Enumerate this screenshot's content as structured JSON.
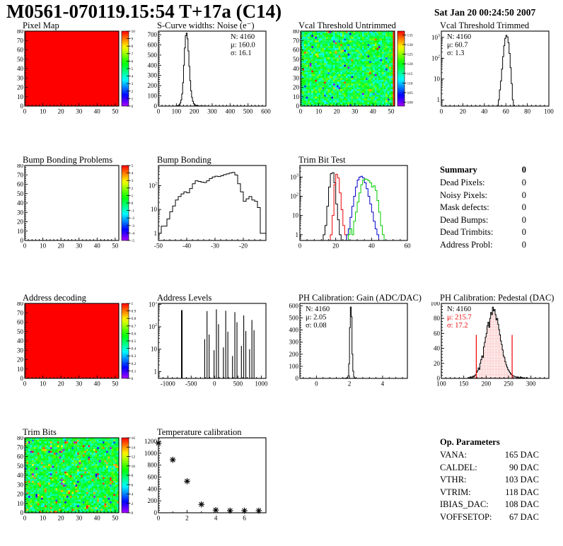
{
  "header": {
    "title": "M0561-070119.15:54 T+17a (C14)",
    "date": "Sat Jan 20 00:24:50 2007"
  },
  "summary": {
    "heading": "Summary",
    "value": "0",
    "rows": [
      {
        "label": "Dead Pixels:",
        "value": "0"
      },
      {
        "label": "Noisy Pixels:",
        "value": "0"
      },
      {
        "label": "Mask defects:",
        "value": "0"
      },
      {
        "label": "Dead Bumps:",
        "value": "0"
      },
      {
        "label": "Dead Trimbits:",
        "value": "0"
      },
      {
        "label": "Address Probl:",
        "value": "0"
      }
    ]
  },
  "op_parameters": {
    "heading": "Op. Parameters",
    "rows": [
      {
        "label": "VANA:",
        "value": "165 DAC"
      },
      {
        "label": "CALDEL:",
        "value": "90 DAC"
      },
      {
        "label": "VTHR:",
        "value": "103 DAC"
      },
      {
        "label": "VTRIM:",
        "value": "118 DAC"
      },
      {
        "label": "IBIAS_DAC:",
        "value": "108 DAC"
      },
      {
        "label": "VOFFSETOP:",
        "value": "67 DAC"
      }
    ]
  },
  "colors": {
    "stats_highlight": "#ee0000",
    "heat_uniform_max": "#ff0000",
    "trimbit_series": [
      "#000000",
      "#ee0000",
      "#0000cc",
      "#00cc00"
    ]
  },
  "chart_data": [
    {
      "id": "pixel_map",
      "title": "Pixel Map",
      "type": "heatmap",
      "x_range": [
        0,
        52
      ],
      "y_range": [
        0,
        80
      ],
      "xticks": [
        0,
        10,
        20,
        30,
        40,
        50
      ],
      "yticks": [
        0,
        10,
        20,
        30,
        40,
        50,
        60,
        70,
        80
      ],
      "fill": {
        "mode": "uniform",
        "value": 10
      },
      "colorbar": {
        "min": 0,
        "max": 10,
        "ticks": [
          0,
          1,
          2,
          3,
          4,
          5,
          6,
          7,
          8,
          9,
          10
        ]
      }
    },
    {
      "id": "scurve",
      "title": "S-Curve widths: Noise (e⁻)",
      "type": "histogram",
      "yscale": "linear",
      "x_range": [
        0,
        600
      ],
      "y_range": [
        0,
        735
      ],
      "xticks": [
        0,
        100,
        200,
        300,
        400,
        500,
        600
      ],
      "yticks": [
        0,
        100,
        200,
        300,
        400,
        500,
        600,
        700
      ],
      "stats": {
        "pos": "tr",
        "lines": [
          {
            "text": "N: 4160"
          },
          {
            "text": "μ: 160.0"
          },
          {
            "text": "σ: 16.1"
          }
        ]
      },
      "series": [
        {
          "color": "#000000",
          "x0": 95,
          "dx": 5,
          "counts": [
            1,
            2,
            4,
            8,
            15,
            30,
            60,
            120,
            230,
            400,
            570,
            690,
            715,
            660,
            540,
            390,
            250,
            150,
            85,
            48,
            26,
            15,
            9,
            6,
            4,
            3,
            2,
            2,
            1,
            1,
            2,
            1,
            1,
            0,
            1
          ]
        }
      ]
    },
    {
      "id": "vcal_untrimmed",
      "title": "Vcal Threshold Untrimmed",
      "type": "heatmap",
      "x_range": [
        0,
        52
      ],
      "y_range": [
        0,
        80
      ],
      "xticks": [
        0,
        10,
        20,
        30,
        40,
        50
      ],
      "yticks": [
        0,
        10,
        20,
        30,
        40,
        50,
        60,
        70,
        80
      ],
      "fill": {
        "mode": "noise",
        "mean": 118,
        "sigma": 4.5,
        "hi_frac": 0.012,
        "lo_frac": 0.015,
        "hot_last_col": true
      },
      "colorbar": {
        "min": 98,
        "max": 137,
        "ticks": [
          100,
          105,
          110,
          115,
          120,
          125,
          130,
          135
        ]
      }
    },
    {
      "id": "vcal_trimmed",
      "title": "Vcal Threshold Trimmed",
      "type": "histogram",
      "yscale": "log",
      "x_range": [
        0,
        100
      ],
      "y_range": [
        0.5,
        2000
      ],
      "xticks": [
        0,
        20,
        40,
        60,
        80,
        100
      ],
      "stats": {
        "pos": "tl",
        "lines": [
          {
            "text": "N: 4160"
          },
          {
            "text": "μ: 60.7"
          },
          {
            "text": "σ: 1.3"
          }
        ]
      },
      "series": [
        {
          "color": "#000000",
          "x0": 53,
          "dx": 1,
          "counts": [
            1,
            3,
            8,
            30,
            120,
            400,
            900,
            1250,
            1050,
            550,
            170,
            35,
            6,
            1
          ]
        }
      ]
    },
    {
      "id": "bump_problems",
      "title": "Bump Bonding Problems",
      "type": "heatmap",
      "x_range": [
        0,
        52
      ],
      "y_range": [
        0,
        80
      ],
      "xticks": [
        0,
        10,
        20,
        30,
        40,
        50
      ],
      "yticks": [
        0,
        10,
        20,
        30,
        40,
        50,
        60,
        70,
        80
      ],
      "fill": {
        "mode": "empty"
      },
      "colorbar": {
        "min": -5,
        "max": 5,
        "ticks": [
          -5,
          -4,
          -3,
          -2,
          -1,
          0,
          1,
          2,
          3,
          4,
          5
        ]
      }
    },
    {
      "id": "bump_bonding",
      "title": "Bump Bonding",
      "type": "histogram",
      "yscale": "log",
      "x_range": [
        -50,
        -12
      ],
      "y_range": [
        0.5,
        700
      ],
      "xticks": [
        -50,
        -40,
        -30,
        -20
      ],
      "series": [
        {
          "color": "#000000",
          "x0": -50,
          "dx": 1,
          "counts": [
            1,
            2,
            2,
            4,
            8,
            14,
            25,
            35,
            45,
            55,
            50,
            75,
            120,
            160,
            150,
            140,
            135,
            160,
            200,
            230,
            250,
            240,
            260,
            290,
            310,
            340,
            360,
            280,
            120,
            55,
            22,
            28,
            35,
            25,
            22,
            12,
            1,
            1
          ]
        }
      ]
    },
    {
      "id": "trimbit_test",
      "title": "Trim Bit Test",
      "type": "histogram",
      "yscale": "log",
      "x_range": [
        0,
        60
      ],
      "y_range": [
        0.5,
        4000
      ],
      "xticks": [
        0,
        20,
        40,
        60
      ],
      "series": [
        {
          "color": "#000000",
          "x0": 13,
          "dx": 1,
          "counts": [
            1,
            3,
            30,
            300,
            1500,
            1700,
            500,
            40,
            6,
            1
          ]
        },
        {
          "color": "#ee0000",
          "x0": 17,
          "dx": 1,
          "counts": [
            1,
            10,
            400,
            1400,
            900,
            150,
            20,
            3,
            1
          ]
        },
        {
          "color": "#0000cc",
          "x0": 26,
          "dx": 1,
          "counts": [
            1,
            2,
            8,
            30,
            100,
            300,
            700,
            1000,
            1100,
            900,
            500,
            250,
            100,
            40,
            15,
            5,
            2,
            1
          ]
        },
        {
          "color": "#00cc00",
          "x0": 27,
          "dx": 1,
          "counts": [
            1,
            2,
            1,
            5,
            15,
            50,
            150,
            400,
            700,
            800,
            750,
            650,
            500,
            300,
            350,
            200,
            60,
            15,
            3,
            1
          ]
        }
      ]
    },
    {
      "id": "addr_decoding",
      "title": "Address decoding",
      "type": "heatmap",
      "x_range": [
        0,
        52
      ],
      "y_range": [
        0,
        80
      ],
      "xticks": [
        0,
        10,
        20,
        30,
        40,
        50
      ],
      "yticks": [
        0,
        10,
        20,
        30,
        40,
        50,
        60,
        70,
        80
      ],
      "fill": {
        "mode": "uniform",
        "value": 1
      },
      "colorbar": {
        "min": 0,
        "max": 1,
        "ticks": [
          0,
          0.1,
          0.2,
          0.3,
          0.4,
          0.5,
          0.6,
          0.7,
          0.8,
          0.9,
          1
        ]
      }
    },
    {
      "id": "addr_levels",
      "title": "Address Levels",
      "type": "spikes",
      "yscale": "log",
      "x_range": [
        -1200,
        1100
      ],
      "y_range": [
        0.5,
        1100
      ],
      "xticks": [
        -1000,
        -500,
        0,
        500,
        1000
      ],
      "spikes": [
        [
          -700,
          550,
          30
        ],
        [
          -210,
          28,
          12
        ],
        [
          -160,
          500,
          14
        ],
        [
          -115,
          45,
          12
        ],
        [
          -10,
          9,
          12
        ],
        [
          40,
          600,
          14
        ],
        [
          85,
          130,
          12
        ],
        [
          190,
          12,
          12
        ],
        [
          240,
          520,
          14
        ],
        [
          285,
          60,
          12
        ],
        [
          385,
          5,
          12
        ],
        [
          435,
          450,
          14
        ],
        [
          480,
          160,
          12
        ],
        [
          575,
          14,
          12
        ],
        [
          625,
          320,
          14
        ],
        [
          670,
          65,
          12
        ],
        [
          750,
          10,
          12
        ],
        [
          800,
          200,
          14
        ],
        [
          845,
          70,
          12
        ]
      ]
    },
    {
      "id": "ph_gain",
      "title": "PH Calibration: Gain (ADC/DAC)",
      "type": "histogram",
      "yscale": "linear",
      "x_range": [
        -1,
        5.5
      ],
      "y_range": [
        0,
        620
      ],
      "xticks": [
        0,
        2,
        4
      ],
      "yticks": [
        0,
        100,
        200,
        300,
        400,
        500,
        600
      ],
      "stats": {
        "pos": "tl",
        "lines": [
          {
            "text": "N: 4160"
          },
          {
            "text": "μ: 2.05"
          },
          {
            "text": "σ: 0.08"
          }
        ]
      },
      "series": [
        {
          "color": "#000000",
          "x0": 1.55,
          "dx": 0.05,
          "counts": [
            1,
            0,
            1,
            0,
            2,
            3,
            8,
            20,
            120,
            420,
            590,
            510,
            200,
            60,
            12,
            3,
            1
          ]
        }
      ]
    },
    {
      "id": "ph_pedestal",
      "title": "PH Calibration: Pedestal (DAC)",
      "type": "histogram",
      "yscale": "linear",
      "x_range": [
        100,
        340
      ],
      "y_range": [
        0,
        100
      ],
      "xticks": [
        100,
        150,
        200,
        250,
        300
      ],
      "yticks": [
        0,
        20,
        40,
        60,
        80,
        100
      ],
      "stats": {
        "pos": "tl",
        "lines": [
          {
            "text": "N: 4160"
          },
          {
            "text": "μ: 215.7",
            "color": "#ee0000"
          },
          {
            "text": "σ: 17.2",
            "color": "#ee0000"
          }
        ]
      },
      "vlines": [
        {
          "x": 178,
          "top": 58,
          "color": "#ee0000"
        },
        {
          "x": 258,
          "top": 58,
          "color": "#ee0000"
        }
      ],
      "series": [
        {
          "color": "#000000",
          "fill": "red-dots",
          "x0": 160,
          "dx": 2,
          "counts": [
            1,
            1,
            2,
            1,
            2,
            3,
            2,
            4,
            5,
            8,
            10,
            14,
            12,
            20,
            25,
            30,
            28,
            42,
            48,
            55,
            60,
            70,
            75,
            68,
            80,
            88,
            85,
            95,
            90,
            92,
            85,
            78,
            80,
            72,
            65,
            58,
            50,
            45,
            38,
            30,
            28,
            22,
            18,
            15,
            12,
            10,
            8,
            6,
            5,
            4,
            3,
            3,
            2,
            2,
            1,
            2,
            1,
            1,
            2,
            1,
            1,
            0,
            1,
            0,
            0,
            1
          ]
        }
      ]
    },
    {
      "id": "trim_bits",
      "title": "Trim Bits",
      "type": "heatmap",
      "x_range": [
        0,
        52
      ],
      "y_range": [
        0,
        80
      ],
      "xticks": [
        0,
        10,
        20,
        30,
        40,
        50
      ],
      "yticks": [
        0,
        10,
        20,
        30,
        40,
        50,
        60,
        70,
        80
      ],
      "fill": {
        "mode": "noise",
        "mean": 8.3,
        "sigma": 1.6,
        "hi_frac": 0.05,
        "lo_frac": 0.02
      },
      "colorbar": {
        "min": 0,
        "max": 16,
        "ticks": [
          0,
          2,
          4,
          6,
          8,
          10,
          12,
          14,
          16
        ]
      }
    },
    {
      "id": "temp_cal",
      "title": "Temperature calibration",
      "type": "scatter",
      "yscale": "linear",
      "x_range": [
        0,
        7.5
      ],
      "y_range": [
        0,
        1260
      ],
      "xticks": [
        0,
        2,
        4,
        6
      ],
      "yticks": [
        0,
        200,
        400,
        600,
        800,
        1000,
        1200
      ],
      "x_minor_div": 2,
      "points": [
        [
          0,
          1170
        ],
        [
          1,
          890
        ],
        [
          2,
          530
        ],
        [
          3,
          140
        ],
        [
          4,
          45
        ],
        [
          5,
          35
        ],
        [
          6,
          35
        ],
        [
          7,
          35
        ]
      ]
    }
  ]
}
